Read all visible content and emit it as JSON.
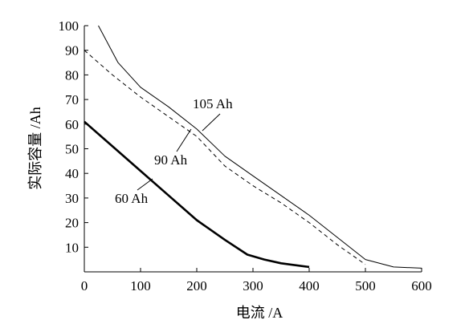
{
  "chart_data": {
    "type": "line",
    "xlabel": "电流 /A",
    "ylabel": "实际容量 /Ah",
    "xlim": [
      0,
      600
    ],
    "ylim": [
      0,
      100
    ],
    "x_ticks": [
      0,
      100,
      200,
      300,
      400,
      500,
      600
    ],
    "y_ticks": [
      10,
      20,
      30,
      40,
      50,
      60,
      70,
      80,
      90,
      100
    ],
    "grid": false,
    "legend": "none",
    "series": [
      {
        "name": "105 Ah",
        "style": "thin-solid",
        "x": [
          25,
          60,
          100,
          150,
          200,
          250,
          300,
          350,
          400,
          450,
          500,
          550,
          600
        ],
        "y": [
          100,
          85,
          75,
          67,
          58,
          47,
          39,
          31,
          23,
          14,
          5,
          2,
          1.5
        ]
      },
      {
        "name": "90 Ah",
        "style": "dashed",
        "x": [
          0,
          50,
          100,
          150,
          200,
          250,
          300,
          350,
          400,
          450,
          500
        ],
        "y": [
          90,
          80,
          71,
          63,
          55,
          43,
          35,
          28,
          20,
          11,
          3
        ]
      },
      {
        "name": "60 Ah",
        "style": "thick-solid",
        "x": [
          0,
          50,
          100,
          150,
          200,
          250,
          290,
          320,
          350,
          400
        ],
        "y": [
          61,
          51,
          41,
          31,
          21,
          13,
          7,
          5,
          3.5,
          2
        ]
      }
    ],
    "annotations": [
      "105 Ah",
      "90 Ah",
      "60 Ah"
    ]
  }
}
